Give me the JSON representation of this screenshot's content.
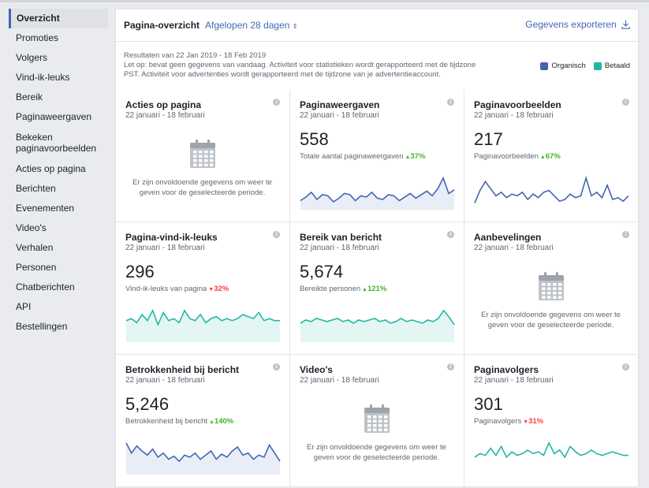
{
  "sidebar": {
    "items": [
      {
        "label": "Overzicht",
        "active": true
      },
      {
        "label": "Promoties"
      },
      {
        "label": "Volgers"
      },
      {
        "label": "Vind-ik-leuks"
      },
      {
        "label": "Bereik"
      },
      {
        "label": "Paginaweergaven"
      },
      {
        "label": "Bekeken paginavoorbeelden"
      },
      {
        "label": "Acties op pagina"
      },
      {
        "label": "Berichten"
      },
      {
        "label": "Evenementen"
      },
      {
        "label": "Video's"
      },
      {
        "label": "Verhalen"
      },
      {
        "label": "Personen"
      },
      {
        "label": "Chatberichten"
      },
      {
        "label": "API"
      },
      {
        "label": "Bestellingen"
      }
    ]
  },
  "header": {
    "title": "Pagina-overzicht",
    "range": "Afgelopen 28 dagen",
    "range_icon": "sort-arrows-icon",
    "export": "Gegevens exporteren",
    "export_icon": "download-icon"
  },
  "info": {
    "results": "Resultaten van 22 Jan 2019 - 18 Feb 2019",
    "note1": "Let op: bevat geen gegevens van vandaag. Activiteit voor statistieken wordt gerapporteerd met de tijdzone",
    "note2": "PST. Activiteit voor advertenties wordt gerapporteerd met de tijdzone van je advertentieaccount."
  },
  "legend": {
    "organic": {
      "label": "Organisch",
      "color": "#4267b2"
    },
    "paid": {
      "label": "Betaald",
      "color": "#23b7a4"
    }
  },
  "empty_text": "Er zijn onvoldoende gegevens om weer te geven voor de geselecteerde periode.",
  "cards": [
    {
      "title": "Acties op pagina",
      "date": "22 januari - 18 februari",
      "empty": true
    },
    {
      "title": "Paginaweergaven",
      "date": "22 januari - 18 februari",
      "value": "558",
      "metric": "Totale aantal paginaweergaven",
      "pct": "37%",
      "dir": "up",
      "color": "#4267b2",
      "fill": true,
      "series": [
        5,
        8,
        12,
        6,
        10,
        9,
        4,
        7,
        11,
        10,
        5,
        9,
        8,
        12,
        7,
        6,
        10,
        9,
        5,
        8,
        11,
        7,
        10,
        13,
        9,
        15,
        24,
        11,
        14
      ]
    },
    {
      "title": "Paginavoorbeelden",
      "date": "22 januari - 18 februari",
      "value": "217",
      "metric": "Paginavoorbeelden",
      "pct": "67%",
      "dir": "up",
      "color": "#4267b2",
      "fill": false,
      "series": [
        2,
        9,
        14,
        10,
        6,
        8,
        5,
        7,
        6,
        8,
        4,
        7,
        5,
        8,
        9,
        6,
        3,
        4,
        7,
        5,
        6,
        16,
        6,
        8,
        5,
        12,
        4,
        5,
        3,
        6
      ]
    },
    {
      "title": "Pagina-vind-ik-leuks",
      "date": "22 januari - 18 februari",
      "value": "296",
      "metric": "Vind-ik-leuks van pagina",
      "pct": "32%",
      "dir": "down",
      "color": "#23b7a4",
      "fill": true,
      "series": [
        9,
        10,
        8,
        12,
        9,
        14,
        7,
        13,
        9,
        10,
        8,
        14,
        10,
        9,
        12,
        8,
        10,
        11,
        9,
        10,
        9,
        10,
        12,
        11,
        10,
        13,
        9,
        10,
        9,
        9
      ]
    },
    {
      "title": "Bereik van bericht",
      "date": "22 januari - 18 februari",
      "value": "5,674",
      "metric": "Bereikte personen",
      "pct": "121%",
      "dir": "up",
      "color": "#23b7a4",
      "fill": true,
      "series": [
        10,
        12,
        11,
        13,
        12,
        11,
        12,
        13,
        11,
        12,
        10,
        12,
        11,
        12,
        13,
        11,
        12,
        10,
        11,
        13,
        11,
        12,
        11,
        10,
        12,
        11,
        13,
        18,
        14,
        9
      ]
    },
    {
      "title": "Aanbevelingen",
      "date": "22 januari - 18 februari",
      "empty": true
    },
    {
      "title": "Betrokkenheid bij bericht",
      "date": "22 januari - 18 februari",
      "value": "5,246",
      "metric": "Betrokkenheid bij bericht",
      "pct": "140%",
      "dir": "up",
      "color": "#4267b2",
      "fill": true,
      "series": [
        28,
        18,
        25,
        20,
        16,
        22,
        14,
        18,
        12,
        15,
        10,
        16,
        14,
        18,
        12,
        16,
        20,
        12,
        17,
        14,
        20,
        24,
        16,
        18,
        12,
        16,
        14,
        26,
        18,
        10
      ]
    },
    {
      "title": "Video's",
      "date": "22 januari - 18 februari",
      "empty": true
    },
    {
      "title": "Paginavolgers",
      "date": "22 januari - 18 februari",
      "value": "301",
      "metric": "Paginavolgers",
      "pct": "31%",
      "dir": "down",
      "color": "#23b7a4",
      "fill": false,
      "series": [
        8,
        10,
        9,
        13,
        9,
        14,
        8,
        11,
        9,
        10,
        12,
        10,
        11,
        9,
        16,
        10,
        12,
        8,
        14,
        11,
        9,
        10,
        12,
        10,
        9,
        10,
        11,
        10,
        9,
        9
      ]
    }
  ]
}
